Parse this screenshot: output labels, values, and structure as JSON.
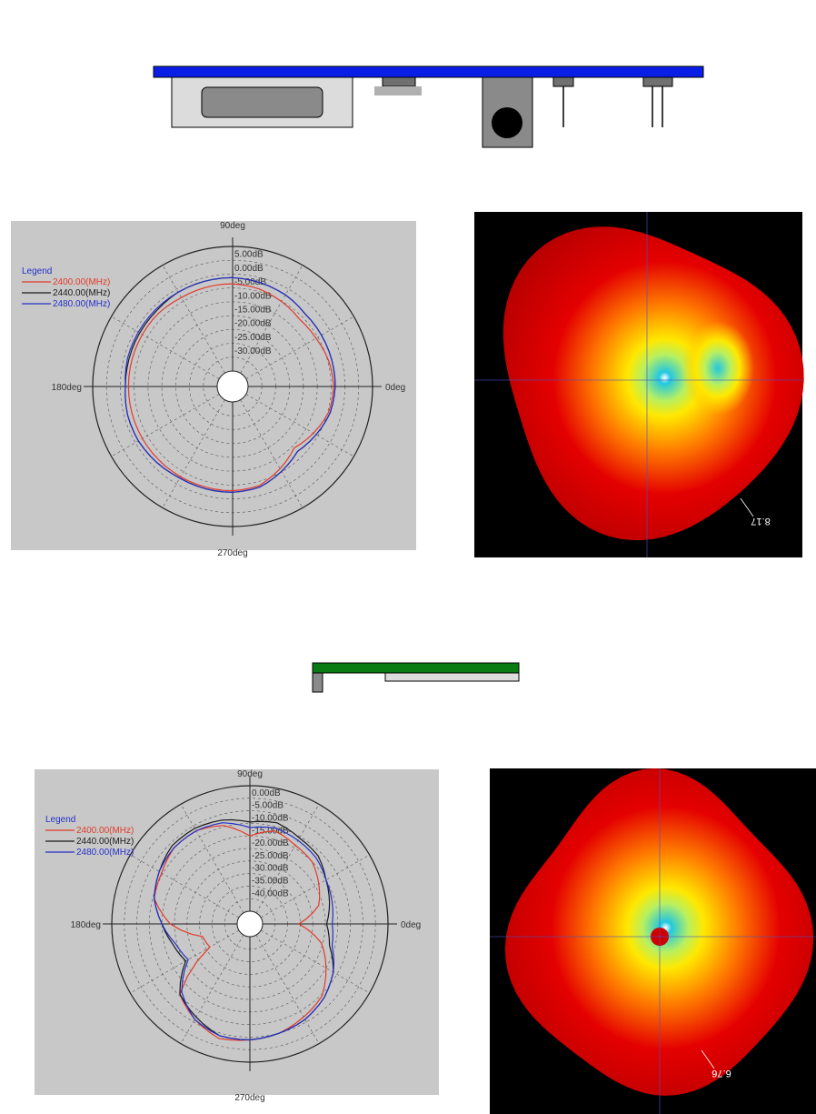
{
  "figure_top": {
    "colors": {
      "pcb": "#0a1fe6",
      "enclosure": "#dcdcdc",
      "window": "#8a8a8a",
      "connector": "#707070",
      "dark": "#000000"
    }
  },
  "figure_bottom": {
    "colors": {
      "pcb": "#0a7a12",
      "enclosure": "#dcdcdc",
      "stub": "#8a8a8a"
    }
  },
  "chart_data": [
    {
      "type": "polar-line",
      "angle_labels": [
        "90deg",
        "180deg",
        "0deg",
        "270deg"
      ],
      "radial_ticks": [
        "5.00dB",
        "0.00dB",
        "-5.00dB",
        "-10.00dB",
        "-15.00dB",
        "-20.00dB",
        "-25.00dB",
        "-30.00dB"
      ],
      "r_range_db": [
        -35,
        5
      ],
      "legend_title": "Legend",
      "legend_position": "top-left",
      "series": [
        {
          "name": "2400.00(MHz)",
          "color": "#e23a2a",
          "theta": [
            0,
            15,
            30,
            45,
            60,
            75,
            90,
            105,
            120,
            135,
            150,
            165,
            180,
            195,
            210,
            225,
            240,
            255,
            270,
            285,
            300,
            315,
            330,
            345,
            360
          ],
          "gain_db": [
            -7.5,
            -8,
            -9,
            -9.5,
            -8.5,
            -7.5,
            -7,
            -7,
            -7,
            -6.5,
            -6.5,
            -6.5,
            -6.5,
            -6.5,
            -6.5,
            -6.5,
            -6.5,
            -6.5,
            -6.5,
            -7,
            -9.5,
            -12,
            -10,
            -8,
            -7.5
          ]
        },
        {
          "name": "2440.00(MHz)",
          "color": "#1a1a1a",
          "theta": [
            0,
            15,
            30,
            45,
            60,
            75,
            90,
            105,
            120,
            135,
            150,
            165,
            180,
            195,
            210,
            225,
            240,
            255,
            270,
            285,
            300,
            315,
            330,
            345,
            360
          ],
          "gain_db": [
            -7,
            -7,
            -7,
            -7,
            -6,
            -5.5,
            -5,
            -5,
            -5,
            -5.5,
            -5.5,
            -5.5,
            -5.5,
            -5,
            -5,
            -5.5,
            -6,
            -6,
            -6,
            -6.5,
            -8.5,
            -10.5,
            -9,
            -7.5,
            -7
          ]
        },
        {
          "name": "2480.00(MHz)",
          "color": "#2430c8",
          "theta": [
            0,
            15,
            30,
            45,
            60,
            75,
            90,
            105,
            120,
            135,
            150,
            165,
            180,
            195,
            210,
            225,
            240,
            255,
            270,
            285,
            300,
            315,
            330,
            345,
            360
          ],
          "gain_db": [
            -7,
            -7,
            -7,
            -7,
            -6,
            -5.5,
            -5,
            -5,
            -5,
            -5,
            -5,
            -5,
            -5.5,
            -5,
            -5,
            -5.5,
            -6,
            -6,
            -6,
            -6.5,
            -8.5,
            -10.5,
            -9,
            -7.5,
            -7
          ]
        }
      ]
    },
    {
      "type": "polar-line",
      "angle_labels": [
        "90deg",
        "180deg",
        "0deg",
        "270deg"
      ],
      "radial_ticks": [
        "0.00dB",
        "-5.00dB",
        "-10.00dB",
        "-15.00dB",
        "-20.00dB",
        "-25.00dB",
        "-30.00dB",
        "-35.00dB",
        "-40.00dB"
      ],
      "r_range_db": [
        -45,
        0
      ],
      "legend_title": "Legend",
      "legend_position": "top-left",
      "series": [
        {
          "name": "2400.00(MHz)",
          "color": "#e23a2a",
          "theta": [
            0,
            15,
            30,
            45,
            60,
            75,
            90,
            105,
            120,
            135,
            150,
            165,
            180,
            195,
            210,
            225,
            240,
            255,
            270,
            285,
            300,
            315,
            330,
            345,
            360
          ],
          "gain_db": [
            -32,
            -24,
            -21,
            -18,
            -17,
            -15,
            -18,
            -13,
            -11,
            -11,
            -13,
            -14,
            -21,
            -32,
            -33,
            -14,
            -10,
            -7,
            -8,
            -9,
            -11,
            -13,
            -18,
            -23,
            -32
          ]
        },
        {
          "name": "2440.00(MHz)",
          "color": "#1a1a1a",
          "theta": [
            0,
            15,
            30,
            45,
            60,
            75,
            90,
            105,
            120,
            135,
            150,
            165,
            180,
            195,
            210,
            225,
            240,
            255,
            270,
            285,
            300,
            315,
            330,
            345,
            360
          ],
          "gain_db": [
            -22,
            -20,
            -18,
            -15,
            -14,
            -12,
            -13,
            -11,
            -10,
            -10,
            -12,
            -14,
            -18,
            -21,
            -23,
            -14,
            -11,
            -8,
            -8,
            -9,
            -10,
            -12,
            -15,
            -20,
            -22
          ]
        },
        {
          "name": "2480.00(MHz)",
          "color": "#2430c8",
          "theta": [
            0,
            15,
            30,
            45,
            60,
            75,
            90,
            105,
            120,
            135,
            150,
            165,
            180,
            195,
            210,
            225,
            240,
            255,
            270,
            285,
            300,
            315,
            330,
            345,
            360
          ],
          "gain_db": [
            -20,
            -19,
            -18,
            -16,
            -15,
            -14,
            -15,
            -12,
            -11,
            -11,
            -12,
            -14,
            -18,
            -22,
            -24,
            -15,
            -10,
            -8,
            -8,
            -9,
            -10,
            -12,
            -15,
            -19,
            -20
          ]
        }
      ]
    }
  ],
  "render3d": [
    {
      "value_label": "8.17",
      "colors": {
        "background": "#000000",
        "outer": "#e40000",
        "mid": "#ff7a00",
        "inner": "#ffe800",
        "cold": "#22c8e0",
        "axis": "#4a52c8"
      }
    },
    {
      "value_label": "6.76",
      "colors": {
        "background": "#000000",
        "outer": "#e40000",
        "mid": "#ff7a00",
        "inner": "#ffe800",
        "cold": "#22c8e0",
        "axis": "#4a52c8"
      }
    }
  ]
}
